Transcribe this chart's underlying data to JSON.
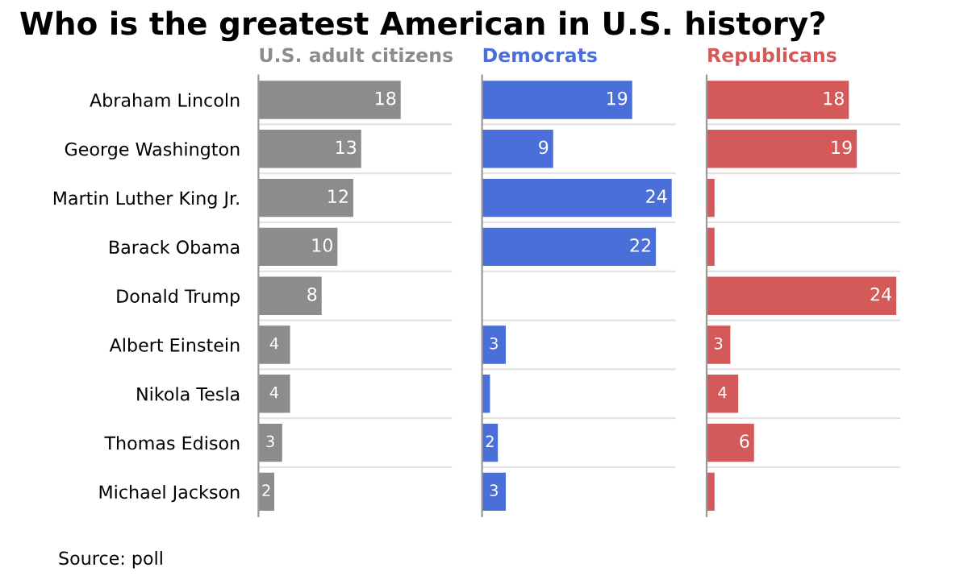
{
  "chart_data": [
    {
      "type": "bar",
      "orientation": "horizontal",
      "title": "U.S. adult citizens",
      "subtitle": "Who is the greatest American in U.S. history?",
      "categories": [
        "Abraham Lincoln",
        "George Washington",
        "Martin Luther King Jr.",
        "Barack Obama",
        "Donald Trump",
        "Albert Einstein",
        "Nikola Tesla",
        "Thomas Edison",
        "Michael Jackson"
      ],
      "values": [
        18,
        13,
        12,
        10,
        8,
        4,
        4,
        3,
        2
      ],
      "color": "#8c8c8c",
      "data_labels": true,
      "xlim": [
        0,
        24.5
      ],
      "grid": "y",
      "annotations": [
        "Source: poll"
      ]
    },
    {
      "type": "bar",
      "orientation": "horizontal",
      "title": "Democrats",
      "categories": [
        null,
        null,
        null,
        null,
        null,
        null,
        null,
        null,
        null
      ],
      "values": [
        19,
        9,
        24,
        22,
        null,
        3,
        1,
        2,
        3
      ],
      "value_labels": [
        "19",
        "9",
        "24",
        "22",
        null,
        "3",
        null,
        "2",
        "3"
      ],
      "color": "#4a6fd8",
      "xlim": [
        0,
        24.5
      ],
      "grid": "y"
    },
    {
      "type": "bar",
      "orientation": "horizontal",
      "title": "Republicans",
      "categories": [
        null,
        null,
        null,
        null,
        null,
        null,
        null,
        null,
        null
      ],
      "values": [
        18,
        19,
        1,
        1,
        24,
        3,
        4,
        6,
        1
      ],
      "value_labels": [
        "18",
        "19",
        null,
        null,
        "24",
        "3",
        "4",
        "6",
        null
      ],
      "color": "#d45a5a",
      "xlim": [
        0,
        24.5
      ],
      "grid": "y"
    }
  ]
}
